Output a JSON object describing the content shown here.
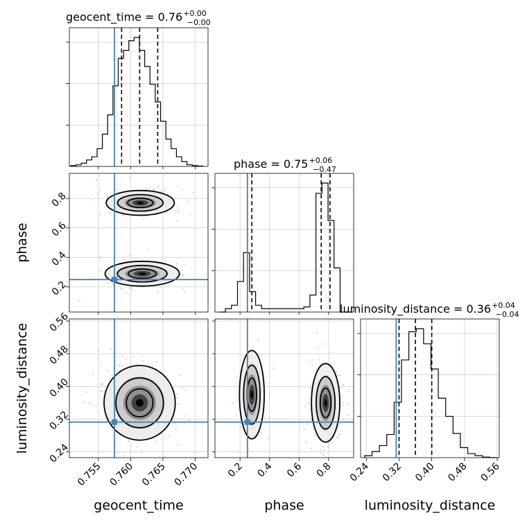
{
  "chart_data": {
    "type": "corner",
    "parameters": [
      "geocent_time",
      "phase",
      "luminosity_distance"
    ],
    "truth_color": "#4682b4",
    "contour_color": "#000000",
    "grid": true,
    "titles": [
      {
        "name": "geocent_time",
        "eq": " = 0.76",
        "plus": "+0.00",
        "minus": "−0.00"
      },
      {
        "name": "phase",
        "eq": " = 0.75",
        "plus": "+0.06",
        "minus": "−0.47"
      },
      {
        "name": "luminosity_distance",
        "eq": " = 0.36",
        "plus": "+0.04",
        "minus": "−0.04"
      }
    ],
    "axes": {
      "geocent_time": {
        "range": [
          0.7505,
          0.772
        ],
        "ticks": [
          "0.755",
          "0.760",
          "0.765",
          "0.770"
        ],
        "truth": 0.7575
      },
      "phase": {
        "range": [
          0.03,
          0.97
        ],
        "ticks": [
          "0.2",
          "0.4",
          "0.6",
          "0.8"
        ],
        "truth": 0.25
      },
      "luminosity_distance": {
        "range": [
          0.226,
          0.565
        ],
        "ticks": [
          "0.24",
          "0.32",
          "0.40",
          "0.48",
          "0.56"
        ],
        "truth": 0.313
      }
    },
    "quantiles": {
      "geocent_time": [
        0.7586,
        0.7614,
        0.7642
      ],
      "phase": [
        0.28,
        0.75,
        0.81
      ],
      "luminosity_distance": [
        0.32,
        0.36,
        0.4
      ]
    },
    "histograms": {
      "geocent_time": {
        "x0": 0.7507,
        "x1": 0.7712,
        "counts": [
          0.5,
          1,
          2,
          4,
          6,
          11,
          20,
          32,
          50,
          67,
          72,
          78,
          80,
          72,
          62,
          51,
          40,
          28,
          17,
          11,
          6,
          3,
          1,
          0.5,
          0.2
        ]
      },
      "phase": {
        "x0": 0.06,
        "x1": 0.96,
        "counts": [
          0,
          2,
          4,
          18,
          35,
          12,
          4,
          2,
          2,
          2,
          2,
          2,
          2,
          2,
          3,
          10,
          70,
          76,
          54,
          26,
          0,
          0
        ]
      },
      "luminosity_distance": {
        "x0": 0.236,
        "x1": 0.56,
        "counts": [
          2,
          6,
          12,
          23,
          55,
          97,
          125,
          128,
          113,
          88,
          59,
          41,
          24,
          10,
          4,
          2,
          0.5,
          0
        ]
      }
    },
    "scatter_2d": {
      "geocent_time_phase": {
        "clusters": [
          {
            "cx": 0.7615,
            "cy": 0.77,
            "sx": 0.0022,
            "sy": 0.035,
            "n": 180
          },
          {
            "cx": 0.7618,
            "cy": 0.29,
            "sx": 0.0024,
            "sy": 0.035,
            "n": 70
          }
        ]
      },
      "geocent_time_luminosity_distance": {
        "clusters": [
          {
            "cx": 0.7614,
            "cy": 0.36,
            "sx": 0.0023,
            "sy": 0.038,
            "n": 260
          }
        ]
      },
      "phase_luminosity_distance": {
        "clusters": [
          {
            "cx": 0.28,
            "cy": 0.38,
            "sx": 0.035,
            "sy": 0.045,
            "n": 90
          },
          {
            "cx": 0.78,
            "cy": 0.36,
            "sx": 0.04,
            "sy": 0.04,
            "n": 170
          }
        ]
      }
    }
  }
}
